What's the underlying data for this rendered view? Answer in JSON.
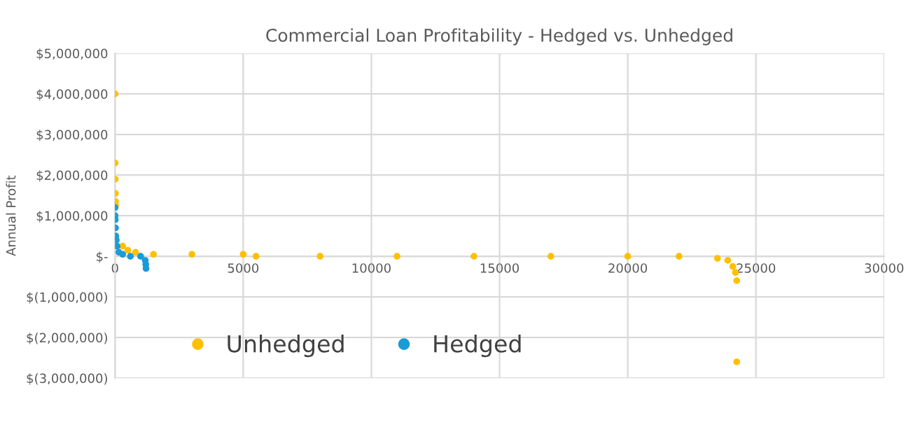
{
  "chart_data": {
    "type": "scatter",
    "title": "Commercial Loan Profitability - Hedged vs. Unhedged",
    "ylabel": "Annual Profit",
    "xlim": [
      0,
      30000
    ],
    "xticks": [
      0,
      5000,
      10000,
      15000,
      20000,
      25000,
      30000
    ],
    "ylim": [
      -3000000,
      5000000
    ],
    "yticks": [
      {
        "value": -3000000,
        "label": "$(3,000,000)"
      },
      {
        "value": -2000000,
        "label": "$(2,000,000)"
      },
      {
        "value": -1000000,
        "label": "$(1,000,000)"
      },
      {
        "value": 0,
        "label": "$-"
      },
      {
        "value": 1000000,
        "label": "$1,000,000"
      },
      {
        "value": 2000000,
        "label": "$2,000,000"
      },
      {
        "value": 3000000,
        "label": "$3,000,000"
      },
      {
        "value": 4000000,
        "label": "$4,000,000"
      },
      {
        "value": 5000000,
        "label": "$5,000,000"
      }
    ],
    "grid": true,
    "legend": "bottom left",
    "marker": "circle",
    "series": [
      {
        "name": "Unhedged",
        "color": "#ffc000",
        "x": [
          1,
          5,
          10,
          15,
          20,
          25,
          300,
          500,
          800,
          1500,
          3000,
          5000,
          5500,
          8000,
          11000,
          14000,
          17000,
          20000,
          22000,
          23500,
          23900,
          24100,
          24200,
          24250,
          24250
        ],
        "values": [
          4000000,
          2300000,
          1900000,
          1550000,
          1350000,
          1250000,
          250000,
          150000,
          100000,
          50000,
          50000,
          50000,
          0,
          0,
          0,
          0,
          0,
          0,
          0,
          -50000,
          -100000,
          -250000,
          -400000,
          -600000,
          -2600000
        ]
      },
      {
        "name": "Hedged",
        "color": "#1a9bd7",
        "x": [
          1,
          5,
          10,
          20,
          30,
          50,
          80,
          150,
          300,
          600,
          1000,
          1180,
          1200,
          1210
        ],
        "values": [
          1200000,
          1000000,
          900000,
          700000,
          500000,
          400000,
          250000,
          100000,
          50000,
          0,
          0,
          -100000,
          -200000,
          -300000
        ]
      }
    ]
  }
}
